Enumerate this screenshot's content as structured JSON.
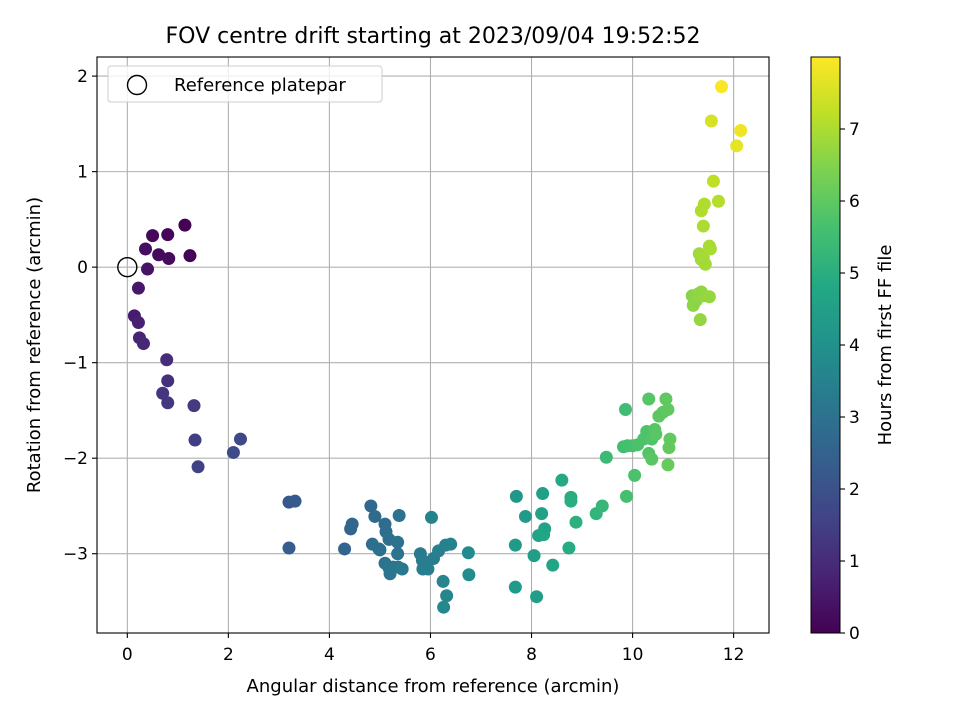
{
  "chart_data": {
    "type": "scatter",
    "title": "FOV centre drift starting at 2023/09/04 19:52:52",
    "xlabel": "Angular distance from reference (arcmin)",
    "ylabel": "Rotation from reference (arcmin)",
    "xlim": [
      -0.6,
      12.7
    ],
    "ylim": [
      -3.83,
      2.2
    ],
    "xticks": [
      0,
      2,
      4,
      6,
      8,
      10,
      12
    ],
    "yticks": [
      2,
      1,
      0,
      -1,
      -2,
      -3
    ],
    "xticklabels": [
      "0",
      "2",
      "4",
      "6",
      "8",
      "10",
      "12"
    ],
    "yticklabels": [
      "2",
      "1",
      "0",
      "−1",
      "−2",
      "−3"
    ],
    "grid": true,
    "legend": {
      "position": "top-left",
      "entries": [
        {
          "label": "Reference platepar",
          "marker": "open-circle"
        }
      ]
    },
    "reference_point": {
      "x": 0,
      "y": 0
    },
    "colorbar": {
      "label": "Hours from first FF file",
      "colormap": "viridis",
      "range": [
        0,
        8.0
      ],
      "ticks": [
        0,
        1,
        2,
        3,
        4,
        5,
        6,
        7
      ],
      "ticklabels": [
        "0",
        "1",
        "2",
        "3",
        "4",
        "5",
        "6",
        "7"
      ]
    },
    "series": [
      {
        "points": [
          {
            "x": 1.14,
            "y": 0.44,
            "c": 0.02
          },
          {
            "x": 1.24,
            "y": 0.12,
            "c": 0.05
          },
          {
            "x": 0.8,
            "y": 0.34,
            "c": 0.1
          },
          {
            "x": 0.5,
            "y": 0.33,
            "c": 0.15
          },
          {
            "x": 0.62,
            "y": 0.13,
            "c": 0.2
          },
          {
            "x": 0.82,
            "y": 0.09,
            "c": 0.25
          },
          {
            "x": 0.36,
            "y": 0.19,
            "c": 0.3
          },
          {
            "x": 0.4,
            "y": -0.02,
            "c": 0.4
          },
          {
            "x": 0.22,
            "y": -0.22,
            "c": 0.5
          },
          {
            "x": 0.14,
            "y": -0.51,
            "c": 0.6
          },
          {
            "x": 0.22,
            "y": -0.58,
            "c": 0.7
          },
          {
            "x": 0.24,
            "y": -0.74,
            "c": 0.8
          },
          {
            "x": 0.32,
            "y": -0.8,
            "c": 0.9
          },
          {
            "x": 0.78,
            "y": -0.97,
            "c": 1.0
          },
          {
            "x": 0.8,
            "y": -1.19,
            "c": 1.1
          },
          {
            "x": 0.7,
            "y": -1.32,
            "c": 1.2
          },
          {
            "x": 0.8,
            "y": -1.42,
            "c": 1.25
          },
          {
            "x": 1.32,
            "y": -1.45,
            "c": 1.35
          },
          {
            "x": 1.34,
            "y": -1.81,
            "c": 1.45
          },
          {
            "x": 1.4,
            "y": -2.09,
            "c": 1.55
          },
          {
            "x": 2.24,
            "y": -1.8,
            "c": 1.75
          },
          {
            "x": 2.1,
            "y": -1.94,
            "c": 1.85
          },
          {
            "x": 3.2,
            "y": -2.46,
            "c": 2.2
          },
          {
            "x": 3.32,
            "y": -2.45,
            "c": 2.25
          },
          {
            "x": 3.2,
            "y": -2.94,
            "c": 2.35
          },
          {
            "x": 4.3,
            "y": -2.95,
            "c": 2.55
          },
          {
            "x": 4.42,
            "y": -2.74,
            "c": 2.6
          },
          {
            "x": 4.45,
            "y": -2.69,
            "c": 2.65
          },
          {
            "x": 4.82,
            "y": -2.5,
            "c": 2.7
          },
          {
            "x": 4.9,
            "y": -2.61,
            "c": 2.75
          },
          {
            "x": 5.1,
            "y": -2.69,
            "c": 2.8
          },
          {
            "x": 5.12,
            "y": -2.77,
            "c": 2.85
          },
          {
            "x": 5.0,
            "y": -2.96,
            "c": 2.9
          },
          {
            "x": 4.85,
            "y": -2.9,
            "c": 2.9
          },
          {
            "x": 4.98,
            "y": -2.95,
            "c": 2.95
          },
          {
            "x": 5.18,
            "y": -2.85,
            "c": 2.95
          },
          {
            "x": 5.35,
            "y": -2.88,
            "c": 3.0
          },
          {
            "x": 5.38,
            "y": -2.6,
            "c": 3.0
          },
          {
            "x": 5.35,
            "y": -3.0,
            "c": 3.05
          },
          {
            "x": 5.1,
            "y": -3.1,
            "c": 3.05
          },
          {
            "x": 5.18,
            "y": -3.15,
            "c": 3.1
          },
          {
            "x": 5.26,
            "y": -3.14,
            "c": 3.1
          },
          {
            "x": 5.2,
            "y": -3.21,
            "c": 3.15
          },
          {
            "x": 5.36,
            "y": -3.14,
            "c": 3.15
          },
          {
            "x": 5.44,
            "y": -3.16,
            "c": 3.2
          },
          {
            "x": 5.8,
            "y": -3.0,
            "c": 3.25
          },
          {
            "x": 5.84,
            "y": -3.07,
            "c": 3.3
          },
          {
            "x": 5.9,
            "y": -3.11,
            "c": 3.3
          },
          {
            "x": 5.85,
            "y": -3.16,
            "c": 3.35
          },
          {
            "x": 5.95,
            "y": -3.16,
            "c": 3.35
          },
          {
            "x": 6.06,
            "y": -3.05,
            "c": 3.4
          },
          {
            "x": 6.16,
            "y": -2.97,
            "c": 3.45
          },
          {
            "x": 6.3,
            "y": -2.91,
            "c": 3.5
          },
          {
            "x": 6.4,
            "y": -2.9,
            "c": 3.55
          },
          {
            "x": 6.02,
            "y": -2.62,
            "c": 3.55
          },
          {
            "x": 6.25,
            "y": -3.29,
            "c": 3.6
          },
          {
            "x": 6.32,
            "y": -3.44,
            "c": 3.65
          },
          {
            "x": 6.26,
            "y": -3.56,
            "c": 3.7
          },
          {
            "x": 6.75,
            "y": -2.99,
            "c": 3.8
          },
          {
            "x": 6.76,
            "y": -3.22,
            "c": 3.85
          },
          {
            "x": 7.7,
            "y": -2.4,
            "c": 4.2
          },
          {
            "x": 7.88,
            "y": -2.61,
            "c": 4.3
          },
          {
            "x": 7.68,
            "y": -2.91,
            "c": 4.3
          },
          {
            "x": 7.68,
            "y": -3.35,
            "c": 4.35
          },
          {
            "x": 8.05,
            "y": -3.02,
            "c": 4.4
          },
          {
            "x": 8.1,
            "y": -3.45,
            "c": 4.45
          },
          {
            "x": 8.22,
            "y": -2.37,
            "c": 4.5
          },
          {
            "x": 8.2,
            "y": -2.58,
            "c": 4.55
          },
          {
            "x": 8.26,
            "y": -2.74,
            "c": 4.6
          },
          {
            "x": 8.14,
            "y": -2.81,
            "c": 4.6
          },
          {
            "x": 8.24,
            "y": -2.8,
            "c": 4.65
          },
          {
            "x": 8.42,
            "y": -3.12,
            "c": 4.7
          },
          {
            "x": 8.6,
            "y": -2.23,
            "c": 4.85
          },
          {
            "x": 8.74,
            "y": -2.94,
            "c": 4.9
          },
          {
            "x": 8.78,
            "y": -2.41,
            "c": 4.95
          },
          {
            "x": 8.78,
            "y": -2.45,
            "c": 5.0
          },
          {
            "x": 8.88,
            "y": -2.67,
            "c": 5.05
          },
          {
            "x": 9.28,
            "y": -2.58,
            "c": 5.2
          },
          {
            "x": 9.4,
            "y": -2.5,
            "c": 5.3
          },
          {
            "x": 9.48,
            "y": -1.99,
            "c": 5.4
          },
          {
            "x": 9.86,
            "y": -1.49,
            "c": 5.5
          },
          {
            "x": 9.82,
            "y": -1.88,
            "c": 5.55
          },
          {
            "x": 9.9,
            "y": -1.87,
            "c": 5.6
          },
          {
            "x": 9.88,
            "y": -2.4,
            "c": 5.6
          },
          {
            "x": 10.0,
            "y": -1.87,
            "c": 5.65
          },
          {
            "x": 10.04,
            "y": -2.18,
            "c": 5.7
          },
          {
            "x": 10.1,
            "y": -1.86,
            "c": 5.7
          },
          {
            "x": 10.22,
            "y": -1.8,
            "c": 5.75
          },
          {
            "x": 10.28,
            "y": -1.72,
            "c": 5.75
          },
          {
            "x": 10.32,
            "y": -1.95,
            "c": 5.8
          },
          {
            "x": 10.38,
            "y": -1.8,
            "c": 5.8
          },
          {
            "x": 10.44,
            "y": -1.7,
            "c": 5.85
          },
          {
            "x": 10.32,
            "y": -1.38,
            "c": 5.85
          },
          {
            "x": 10.38,
            "y": -2.01,
            "c": 5.9
          },
          {
            "x": 10.46,
            "y": -1.75,
            "c": 5.9
          },
          {
            "x": 10.52,
            "y": -1.56,
            "c": 5.95
          },
          {
            "x": 10.6,
            "y": -1.52,
            "c": 5.95
          },
          {
            "x": 10.66,
            "y": -1.38,
            "c": 6.0
          },
          {
            "x": 10.7,
            "y": -1.49,
            "c": 6.0
          },
          {
            "x": 10.72,
            "y": -1.89,
            "c": 6.05
          },
          {
            "x": 10.74,
            "y": -1.8,
            "c": 6.05
          },
          {
            "x": 10.7,
            "y": -2.07,
            "c": 6.1
          },
          {
            "x": 11.18,
            "y": -0.3,
            "c": 6.55
          },
          {
            "x": 11.2,
            "y": -0.4,
            "c": 6.6
          },
          {
            "x": 11.26,
            "y": -0.35,
            "c": 6.6
          },
          {
            "x": 11.3,
            "y": -0.28,
            "c": 6.65
          },
          {
            "x": 11.36,
            "y": -0.26,
            "c": 6.65
          },
          {
            "x": 11.42,
            "y": -0.3,
            "c": 6.7
          },
          {
            "x": 11.34,
            "y": -0.55,
            "c": 6.7
          },
          {
            "x": 11.52,
            "y": -0.31,
            "c": 6.75
          },
          {
            "x": 11.32,
            "y": 0.14,
            "c": 6.85
          },
          {
            "x": 11.36,
            "y": 0.08,
            "c": 6.85
          },
          {
            "x": 11.4,
            "y": 0.1,
            "c": 6.9
          },
          {
            "x": 11.44,
            "y": 0.03,
            "c": 6.9
          },
          {
            "x": 11.52,
            "y": 0.22,
            "c": 6.95
          },
          {
            "x": 11.54,
            "y": 0.19,
            "c": 6.95
          },
          {
            "x": 11.4,
            "y": 0.43,
            "c": 7.0
          },
          {
            "x": 11.36,
            "y": 0.59,
            "c": 7.05
          },
          {
            "x": 11.42,
            "y": 0.66,
            "c": 7.05
          },
          {
            "x": 11.7,
            "y": 0.69,
            "c": 7.1
          },
          {
            "x": 11.6,
            "y": 0.9,
            "c": 7.2
          },
          {
            "x": 11.56,
            "y": 1.53,
            "c": 7.5
          },
          {
            "x": 12.06,
            "y": 1.27,
            "c": 7.7
          },
          {
            "x": 12.14,
            "y": 1.43,
            "c": 7.8
          },
          {
            "x": 11.76,
            "y": 1.89,
            "c": 7.95
          }
        ]
      }
    ]
  }
}
